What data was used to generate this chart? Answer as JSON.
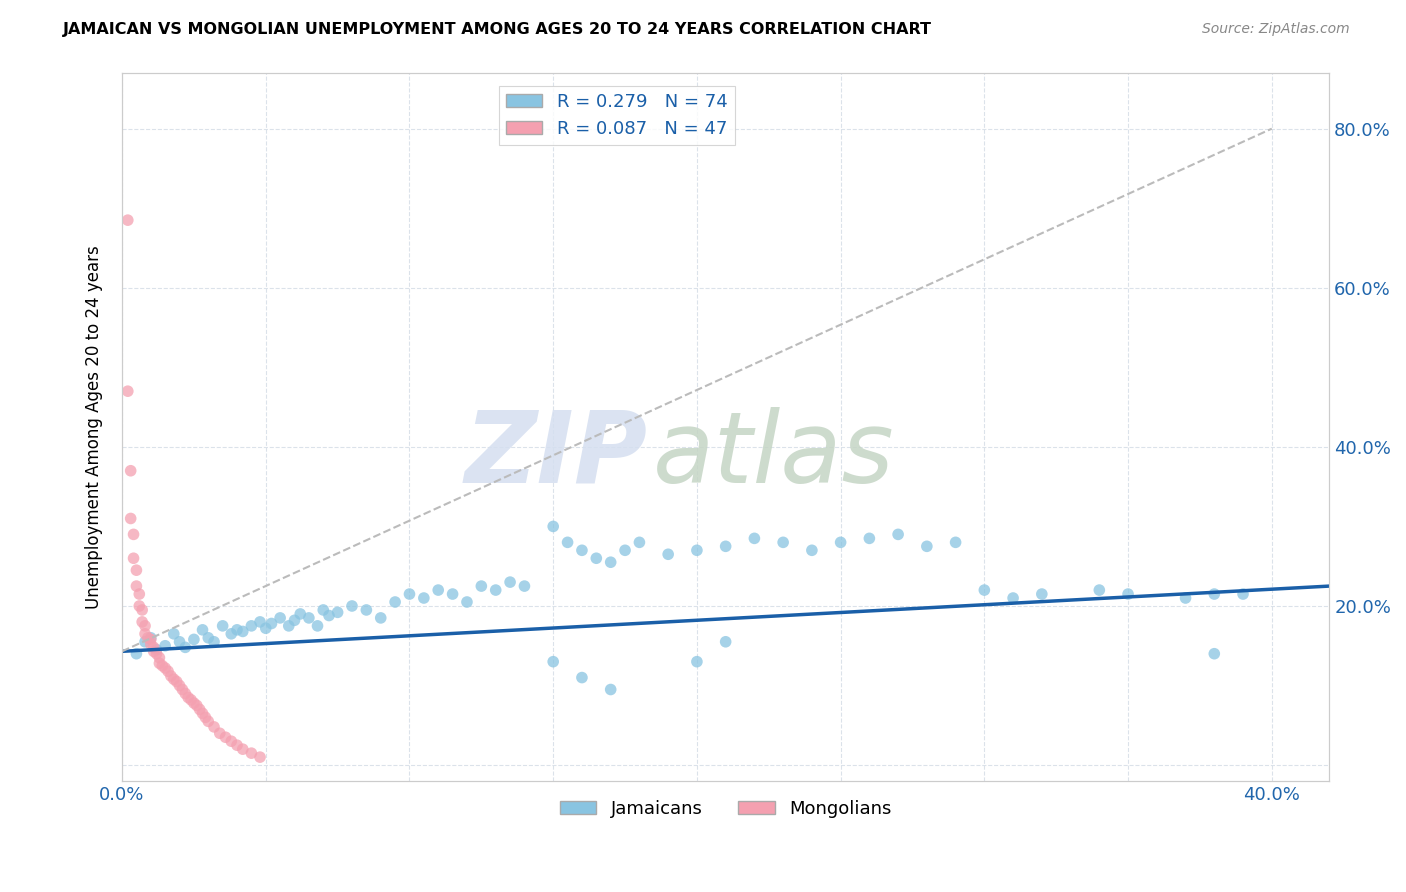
{
  "title": "JAMAICAN VS MONGOLIAN UNEMPLOYMENT AMONG AGES 20 TO 24 YEARS CORRELATION CHART",
  "source": "Source: ZipAtlas.com",
  "ylabel": "Unemployment Among Ages 20 to 24 years",
  "blue_color": "#89c4e1",
  "pink_color": "#f4a0b0",
  "blue_line_color": "#1a5fa8",
  "pink_line_color": "#e87090",
  "dashed_line_color": "#bbbbbb",
  "watermark_zip_color": "#d5dff0",
  "watermark_atlas_color": "#c5d5c5",
  "xlim": [
    0.0,
    0.42
  ],
  "ylim": [
    -0.02,
    0.87
  ],
  "xtick_positions": [
    0.0,
    0.05,
    0.1,
    0.15,
    0.2,
    0.25,
    0.3,
    0.35,
    0.4
  ],
  "xtick_labels": [
    "0.0%",
    "",
    "",
    "",
    "",
    "",
    "",
    "",
    "40.0%"
  ],
  "ytick_positions": [
    0.0,
    0.2,
    0.4,
    0.6,
    0.8
  ],
  "ytick_labels_right": [
    "",
    "20.0%",
    "40.0%",
    "60.0%",
    "80.0%"
  ],
  "blue_trend_x": [
    0.0,
    0.42
  ],
  "blue_trend_y": [
    0.143,
    0.225
  ],
  "pink_trend_x": [
    0.0,
    0.4
  ],
  "pink_trend_y": [
    0.143,
    0.8
  ],
  "legend_blue_label": "R = 0.279   N = 74",
  "legend_pink_label": "R = 0.087   N = 47",
  "bottom_legend_labels": [
    "Jamaicans",
    "Mongolians"
  ],
  "jamaican_x": [
    0.005,
    0.008,
    0.01,
    0.012,
    0.015,
    0.018,
    0.02,
    0.022,
    0.025,
    0.028,
    0.03,
    0.032,
    0.035,
    0.038,
    0.04,
    0.042,
    0.045,
    0.048,
    0.05,
    0.052,
    0.055,
    0.058,
    0.06,
    0.062,
    0.065,
    0.068,
    0.07,
    0.072,
    0.075,
    0.08,
    0.085,
    0.09,
    0.095,
    0.1,
    0.105,
    0.11,
    0.115,
    0.12,
    0.125,
    0.13,
    0.135,
    0.14,
    0.15,
    0.155,
    0.16,
    0.165,
    0.17,
    0.175,
    0.18,
    0.19,
    0.2,
    0.21,
    0.22,
    0.23,
    0.24,
    0.25,
    0.26,
    0.27,
    0.28,
    0.29,
    0.3,
    0.31,
    0.32,
    0.34,
    0.35,
    0.37,
    0.38,
    0.38,
    0.39,
    0.15,
    0.16,
    0.17,
    0.2,
    0.21
  ],
  "jamaican_y": [
    0.14,
    0.155,
    0.16,
    0.145,
    0.15,
    0.165,
    0.155,
    0.148,
    0.158,
    0.17,
    0.16,
    0.155,
    0.175,
    0.165,
    0.17,
    0.168,
    0.175,
    0.18,
    0.172,
    0.178,
    0.185,
    0.175,
    0.182,
    0.19,
    0.185,
    0.175,
    0.195,
    0.188,
    0.192,
    0.2,
    0.195,
    0.185,
    0.205,
    0.215,
    0.21,
    0.22,
    0.215,
    0.205,
    0.225,
    0.22,
    0.23,
    0.225,
    0.3,
    0.28,
    0.27,
    0.26,
    0.255,
    0.27,
    0.28,
    0.265,
    0.27,
    0.275,
    0.285,
    0.28,
    0.27,
    0.28,
    0.285,
    0.29,
    0.275,
    0.28,
    0.22,
    0.21,
    0.215,
    0.22,
    0.215,
    0.21,
    0.215,
    0.14,
    0.215,
    0.13,
    0.11,
    0.095,
    0.13,
    0.155
  ],
  "mongolian_x": [
    0.002,
    0.002,
    0.003,
    0.003,
    0.004,
    0.004,
    0.005,
    0.005,
    0.006,
    0.006,
    0.007,
    0.007,
    0.008,
    0.008,
    0.009,
    0.01,
    0.01,
    0.011,
    0.011,
    0.012,
    0.013,
    0.013,
    0.014,
    0.015,
    0.016,
    0.017,
    0.018,
    0.019,
    0.02,
    0.021,
    0.022,
    0.023,
    0.024,
    0.025,
    0.026,
    0.027,
    0.028,
    0.029,
    0.03,
    0.032,
    0.034,
    0.036,
    0.038,
    0.04,
    0.042,
    0.045,
    0.048
  ],
  "mongolian_y": [
    0.685,
    0.47,
    0.37,
    0.31,
    0.29,
    0.26,
    0.245,
    0.225,
    0.215,
    0.2,
    0.195,
    0.18,
    0.175,
    0.165,
    0.16,
    0.158,
    0.152,
    0.148,
    0.143,
    0.14,
    0.135,
    0.128,
    0.125,
    0.122,
    0.118,
    0.112,
    0.108,
    0.105,
    0.1,
    0.095,
    0.09,
    0.085,
    0.082,
    0.078,
    0.075,
    0.07,
    0.065,
    0.06,
    0.055,
    0.048,
    0.04,
    0.035,
    0.03,
    0.025,
    0.02,
    0.015,
    0.01
  ]
}
